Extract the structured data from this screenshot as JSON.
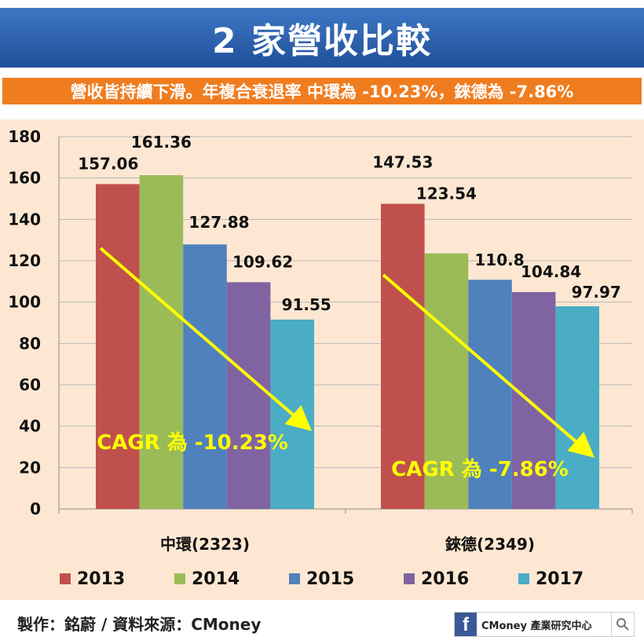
{
  "title": "2 家營收比較",
  "subtitle": "營收皆持續下滑。年複合衰退率 中環為 -10.23%，錸德為 -7.86%",
  "footer": {
    "credit": "製作：銘蔚 / 資料來源：CMoney",
    "badge_label": "CMoney 產業研究中心"
  },
  "icons": {
    "facebook": "facebook-icon",
    "search": "search-icon"
  },
  "colors": {
    "title_bg": "#2b5ea8",
    "subtitle_bg": "#ef7d20",
    "panel_bg": "#fde7d2",
    "arrow": "#ffff00",
    "series": [
      "#c0504d",
      "#9bbb59",
      "#4f81bd",
      "#8064a2",
      "#4bacc6"
    ]
  },
  "chart_data": {
    "type": "bar",
    "categories": [
      "中環(2323)",
      "錸德(2349)"
    ],
    "series": [
      {
        "name": "2013",
        "values": [
          157.06,
          147.53
        ]
      },
      {
        "name": "2014",
        "values": [
          161.36,
          123.54
        ]
      },
      {
        "name": "2015",
        "values": [
          127.88,
          110.8
        ]
      },
      {
        "name": "2016",
        "values": [
          109.62,
          104.84
        ]
      },
      {
        "name": "2017",
        "values": [
          91.55,
          97.97
        ]
      }
    ],
    "data_labels": [
      [
        "157.06",
        "147.53"
      ],
      [
        "161.36",
        "123.54"
      ],
      [
        "127.88",
        "110.8"
      ],
      [
        "109.62",
        "104.84"
      ],
      [
        "91.55",
        "97.97"
      ]
    ],
    "ylim": [
      0,
      180
    ],
    "yticks": [
      0,
      20,
      40,
      60,
      80,
      100,
      120,
      140,
      160,
      180
    ],
    "grid": true,
    "legend_position": "bottom",
    "annotations": [
      "CAGR 為 -10.23%",
      "CAGR 為 -7.86%"
    ]
  }
}
